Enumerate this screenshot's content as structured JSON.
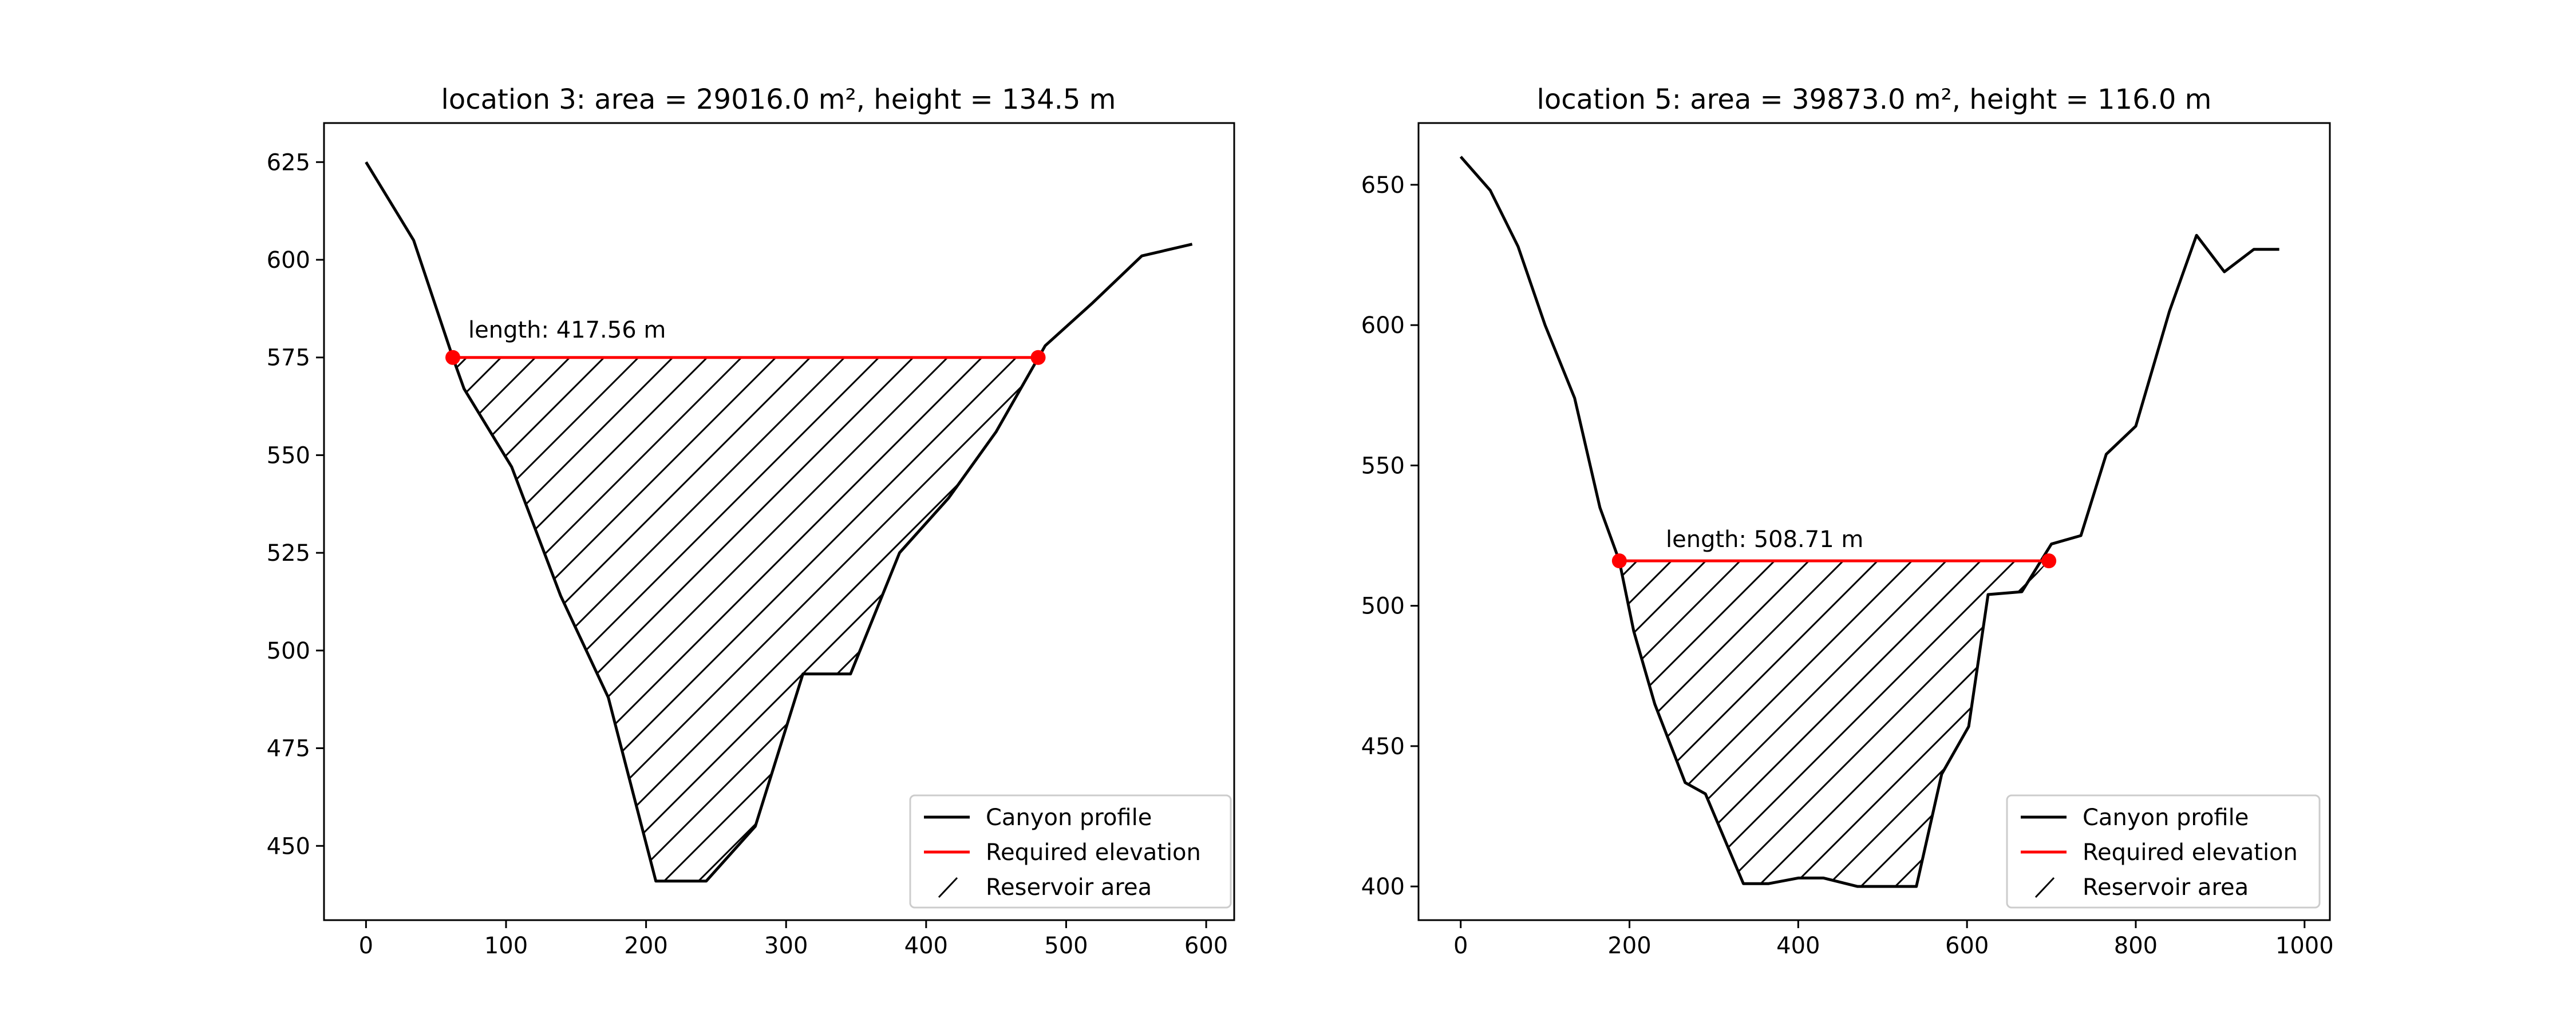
{
  "chart_data": [
    {
      "type": "line",
      "title": "location 3: area = 29016.0 m², height = 134.5 m",
      "xlabel": "",
      "ylabel": "",
      "xlim": [
        -30,
        620
      ],
      "ylim": [
        431,
        635
      ],
      "xticks": [
        0,
        100,
        200,
        300,
        400,
        500,
        600
      ],
      "yticks": [
        450,
        475,
        500,
        525,
        550,
        575,
        600,
        625
      ],
      "grid": false,
      "legend_position": "lower-right",
      "legend": [
        "Canyon profile",
        "Required elevation",
        "Reservoir area"
      ],
      "annotation": "length: 417.56 m",
      "series": [
        {
          "name": "Canyon profile",
          "color": "#000000",
          "x": [
            0,
            34,
            62,
            70,
            104,
            139,
            173,
            207,
            243,
            278,
            312,
            346,
            381,
            416,
            450,
            485,
            519,
            554,
            590
          ],
          "y": [
            625,
            605,
            575,
            567,
            547,
            514,
            488,
            441,
            441,
            455,
            494,
            494,
            525,
            539,
            556,
            578,
            589,
            601,
            604
          ]
        },
        {
          "name": "Required elevation",
          "color": "#ff0000",
          "x": [
            62,
            480
          ],
          "y": [
            575,
            575
          ]
        }
      ],
      "reservoir": {
        "label": "Reservoir area",
        "fill": "none",
        "hatch": "/",
        "level": 575
      }
    },
    {
      "type": "line",
      "title": "location 5: area = 39873.0 m², height = 116.0 m",
      "xlabel": "",
      "ylabel": "",
      "xlim": [
        -50,
        1030
      ],
      "ylim": [
        388,
        672
      ],
      "xticks": [
        0,
        200,
        400,
        600,
        800,
        1000
      ],
      "yticks": [
        400,
        450,
        500,
        550,
        600,
        650
      ],
      "grid": false,
      "legend_position": "lower-right",
      "legend": [
        "Canyon profile",
        "Required elevation",
        "Reservoir area"
      ],
      "annotation": "length: 508.71 m",
      "series": [
        {
          "name": "Canyon profile",
          "color": "#000000",
          "x": [
            0,
            35,
            68,
            100,
            135,
            165,
            188,
            205,
            230,
            266,
            290,
            335,
            365,
            400,
            430,
            470,
            540,
            570,
            602,
            625,
            665,
            700,
            735,
            765,
            800,
            840,
            872,
            905,
            940,
            970
          ],
          "y": [
            660,
            648,
            628,
            600,
            574,
            535,
            516,
            491,
            465,
            437,
            433,
            401,
            401,
            403,
            403,
            400,
            400,
            440,
            457,
            504,
            505,
            522,
            525,
            554,
            564,
            605,
            632,
            619,
            627,
            627
          ]
        },
        {
          "name": "Required elevation",
          "color": "#ff0000",
          "x": [
            188,
            697
          ],
          "y": [
            516,
            516
          ]
        }
      ],
      "reservoir": {
        "label": "Reservoir area",
        "fill": "none",
        "hatch": "/",
        "level": 516
      }
    }
  ]
}
